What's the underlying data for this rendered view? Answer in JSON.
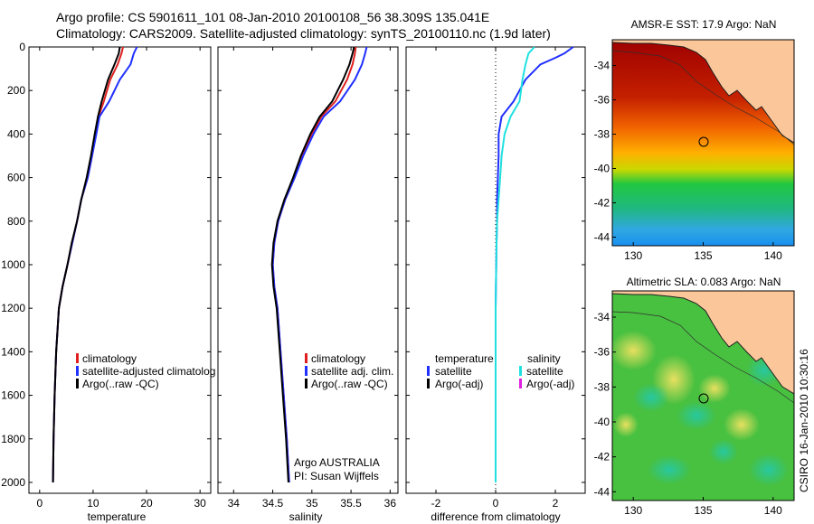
{
  "header": {
    "line1": "Argo profile: CS 5901611_101 08-Jan-2010 20100108_56 38.309S 135.041E",
    "line2": "Climatology: CARS2009. Satellite-adjusted climatology: synTS_20100110.nc (1.9d later)"
  },
  "footer_stamp": "CSIRO 16-Jan-2010 10:30:16",
  "colors": {
    "climatology": "#e02020",
    "satellite": "#2030ff",
    "argo": "#000000",
    "satellite_salinity": "#20e0e0",
    "argo_adj_salinity": "#e020e0"
  },
  "chart_data": [
    {
      "type": "line",
      "name": "temperature-panel",
      "xlabel": "temperature",
      "xlim": [
        -2,
        32
      ],
      "xticks": [
        "0",
        "10",
        "20",
        "30"
      ],
      "xtick_values": [
        0,
        10,
        20,
        30
      ],
      "ylim": [
        2050,
        0
      ],
      "yticks": [
        "0",
        "200",
        "400",
        "600",
        "800",
        "1000",
        "1200",
        "1400",
        "1600",
        "1800",
        "2000"
      ],
      "ytick_values": [
        0,
        200,
        400,
        600,
        800,
        1000,
        1200,
        1400,
        1600,
        1800,
        2000
      ],
      "legend": [
        "climatology",
        "satellite-adjusted climatolog",
        "Argo(..raw -QC)"
      ],
      "series": [
        {
          "name": "climatology",
          "color": "#e02020",
          "x": [
            15.6,
            15.3,
            14.6,
            13.2,
            12.0,
            11.0,
            10.5,
            9.8,
            9.0,
            7.8,
            7.0,
            6.1,
            5.2,
            4.3,
            3.6,
            3.1,
            2.8,
            2.6,
            2.5
          ],
          "y": [
            0,
            30,
            80,
            150,
            250,
            320,
            400,
            500,
            600,
            700,
            800,
            900,
            1000,
            1100,
            1200,
            1400,
            1600,
            1800,
            2000
          ]
        },
        {
          "name": "satellite-adjusted climatology",
          "color": "#2030ff",
          "x": [
            18.2,
            17.6,
            17.0,
            15.0,
            13.0,
            11.2,
            10.6,
            9.8,
            9.0,
            7.8,
            7.0,
            6.1,
            5.2,
            4.3,
            3.6,
            3.1,
            2.8,
            2.6,
            2.5
          ],
          "y": [
            0,
            30,
            80,
            150,
            250,
            320,
            400,
            500,
            600,
            700,
            800,
            900,
            1000,
            1100,
            1200,
            1400,
            1600,
            1800,
            2000
          ]
        },
        {
          "name": "Argo(..raw -QC)",
          "color": "#000000",
          "x": [
            15.0,
            14.8,
            14.0,
            12.8,
            11.6,
            10.9,
            10.3,
            9.6,
            8.8,
            7.8,
            7.0,
            6.0,
            5.2,
            4.3,
            3.6,
            3.1,
            2.8,
            2.6,
            2.5
          ],
          "y": [
            0,
            30,
            80,
            150,
            250,
            320,
            400,
            500,
            600,
            700,
            800,
            900,
            1000,
            1100,
            1200,
            1400,
            1600,
            1800,
            2000
          ]
        }
      ]
    },
    {
      "type": "line",
      "name": "salinity-panel",
      "xlabel": "salinity",
      "xlim": [
        33.8,
        36.1
      ],
      "xticks": [
        "34",
        "34.5",
        "35",
        "35.5",
        "36"
      ],
      "xtick_values": [
        34,
        34.5,
        35,
        35.5,
        36
      ],
      "ylim": [
        2050,
        0
      ],
      "legend": [
        "climatology",
        "satellite adj. clim.",
        "Argo(..raw -QC)"
      ],
      "annotations": [
        "Argo AUSTRALIA",
        "PI: Susan Wijffels"
      ],
      "series": [
        {
          "name": "climatology",
          "color": "#e02020",
          "x": [
            35.56,
            35.55,
            35.52,
            35.45,
            35.3,
            35.12,
            35.0,
            34.88,
            34.78,
            34.66,
            34.57,
            34.52,
            34.5,
            34.52,
            34.56,
            34.6,
            34.64,
            34.68,
            34.71
          ],
          "y": [
            0,
            30,
            80,
            150,
            250,
            320,
            400,
            500,
            600,
            700,
            800,
            900,
            1000,
            1100,
            1200,
            1400,
            1600,
            1800,
            2000
          ]
        },
        {
          "name": "satellite adj. clim.",
          "color": "#2030ff",
          "x": [
            35.7,
            35.68,
            35.64,
            35.55,
            35.36,
            35.15,
            35.02,
            34.89,
            34.78,
            34.66,
            34.57,
            34.52,
            34.5,
            34.52,
            34.56,
            34.6,
            34.64,
            34.68,
            34.71
          ],
          "y": [
            0,
            30,
            80,
            150,
            250,
            320,
            400,
            500,
            600,
            700,
            800,
            900,
            1000,
            1100,
            1200,
            1400,
            1600,
            1800,
            2000
          ]
        },
        {
          "name": "Argo(..raw -QC)",
          "color": "#000000",
          "x": [
            35.54,
            35.52,
            35.48,
            35.4,
            35.26,
            35.1,
            34.98,
            34.86,
            34.76,
            34.65,
            34.56,
            34.51,
            34.49,
            34.51,
            34.55,
            34.59,
            34.63,
            34.67,
            34.7
          ],
          "y": [
            0,
            30,
            80,
            150,
            250,
            320,
            400,
            500,
            600,
            700,
            800,
            900,
            1000,
            1100,
            1200,
            1400,
            1600,
            1800,
            2000
          ]
        }
      ]
    },
    {
      "type": "line",
      "name": "difference-panel",
      "xlabel": "difference from climatology",
      "xlim": [
        -3,
        3
      ],
      "xticks": [
        "-2",
        "0",
        "2"
      ],
      "xtick_values": [
        -2,
        0,
        2
      ],
      "ylim": [
        2050,
        0
      ],
      "zero_line": true,
      "legend_headers": [
        "temperature",
        "salinity"
      ],
      "legend_left": [
        "satellite",
        "Argo(-adj)"
      ],
      "legend_right": [
        "satellite",
        "Argo(-adj)"
      ],
      "series": [
        {
          "name": "temperature satellite",
          "color": "#2030ff",
          "x": [
            2.6,
            2.3,
            2.0,
            1.5,
            1.0,
            0.6,
            0.2,
            0.1,
            0.1,
            0.05,
            0.05,
            0.03,
            0.02,
            0.01,
            0,
            0,
            0,
            0,
            0
          ],
          "y": [
            0,
            30,
            50,
            80,
            150,
            250,
            320,
            400,
            500,
            700,
            800,
            900,
            1000,
            1100,
            1200,
            1400,
            1600,
            1800,
            2000
          ]
        },
        {
          "name": "salinity satellite",
          "color": "#20e0e0",
          "x": [
            1.3,
            1.1,
            1.0,
            0.9,
            0.8,
            0.5,
            0.3,
            0.2,
            0.15,
            0.1,
            0.05,
            0.03,
            0.02,
            0.01,
            0,
            0,
            0,
            0,
            0
          ],
          "y": [
            0,
            30,
            80,
            150,
            250,
            320,
            400,
            500,
            600,
            700,
            800,
            900,
            1000,
            1100,
            1200,
            1400,
            1600,
            1800,
            2000
          ]
        }
      ]
    },
    {
      "type": "heatmap",
      "name": "sst-map",
      "title": "AMSR-E SST: 17.9  Argo: NaN",
      "xticks": [
        "130",
        "135",
        "140"
      ],
      "xtick_values": [
        130,
        135,
        140
      ],
      "yticks": [
        "-34",
        "-36",
        "-38",
        "-40",
        "-42",
        "-44"
      ],
      "ytick_values": [
        -34,
        -36,
        -38,
        -40,
        -42,
        -44
      ],
      "xlim": [
        128.5,
        141.5
      ],
      "ylim": [
        -44.5,
        -32.5
      ],
      "argo_position": [
        135.041,
        -38.309
      ]
    },
    {
      "type": "heatmap",
      "name": "sla-map",
      "title": "Altimetric SLA: 0.083  Argo: NaN",
      "xticks": [
        "130",
        "135",
        "140"
      ],
      "xtick_values": [
        130,
        135,
        140
      ],
      "yticks": [
        "-34",
        "-36",
        "-38",
        "-40",
        "-42",
        "-44"
      ],
      "ytick_values": [
        -34,
        -36,
        -38,
        -40,
        -42,
        -44
      ],
      "xlim": [
        128.5,
        141.5
      ],
      "ylim": [
        -44.5,
        -32.5
      ],
      "argo_position": [
        135.041,
        -38.309
      ]
    }
  ]
}
